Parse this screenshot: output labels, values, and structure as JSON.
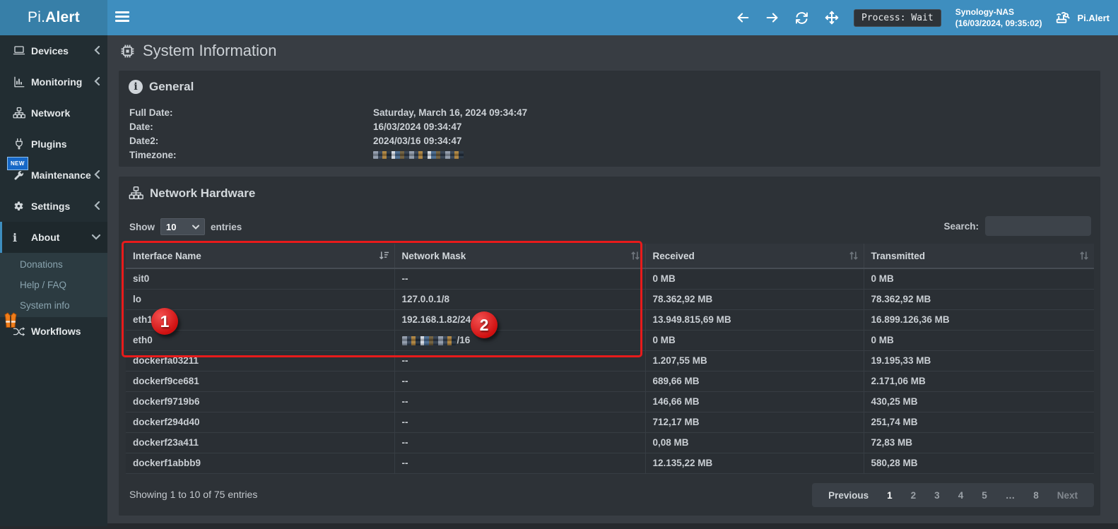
{
  "topbar": {
    "brand_prefix": "Pi.",
    "brand_suffix": "Alert",
    "process_badge": "Process: Wait",
    "host_name": "Synology-NAS",
    "host_time": "(16/03/2024, 09:35:02)",
    "app_name": "Pi.Alert"
  },
  "sidebar": {
    "items": [
      {
        "label": "Devices"
      },
      {
        "label": "Monitoring"
      },
      {
        "label": "Network"
      },
      {
        "label": "Plugins"
      },
      {
        "label": "Maintenance",
        "badge": "NEW"
      },
      {
        "label": "Settings"
      },
      {
        "label": "About"
      }
    ],
    "new_badge": "NEW",
    "about_submenu": [
      {
        "label": "Donations"
      },
      {
        "label": "Help / FAQ"
      },
      {
        "label": "System info"
      }
    ],
    "workflows_label": "Workflows"
  },
  "page": {
    "title": "System Information"
  },
  "general": {
    "title": "General",
    "fields": [
      {
        "label": "Full Date:",
        "value": "Saturday, March 16, 2024 09:34:47"
      },
      {
        "label": "Date:",
        "value": "16/03/2024 09:34:47"
      },
      {
        "label": "Date2:",
        "value": "2024/03/16 09:34:47"
      },
      {
        "label": "Timezone:",
        "value": "",
        "redacted": true
      }
    ]
  },
  "network_hardware": {
    "title": "Network Hardware",
    "show_label": "Show",
    "entries_label": "entries",
    "page_size": "10",
    "search_label": "Search:",
    "search_value": "",
    "table": {
      "columns": [
        "Interface Name",
        "Network Mask",
        "Received",
        "Transmitted"
      ],
      "rows": [
        {
          "interface": "sit0",
          "mask": "--",
          "received": "0 MB",
          "transmitted": "0 MB"
        },
        {
          "interface": "lo",
          "mask": "127.0.0.1/8",
          "received": "78.362,92 MB",
          "transmitted": "78.362,92 MB"
        },
        {
          "interface": "eth1",
          "mask": "192.168.1.82/24",
          "received": "13.949.815,69 MB",
          "transmitted": "16.899.126,36 MB"
        },
        {
          "interface": "eth0",
          "mask": "/16",
          "mask_redacted": true,
          "received": "0 MB",
          "transmitted": "0 MB"
        },
        {
          "interface": "dockerfa03211",
          "mask": "--",
          "received": "1.207,55 MB",
          "transmitted": "19.195,33 MB"
        },
        {
          "interface": "dockerf9ce681",
          "mask": "--",
          "received": "689,66 MB",
          "transmitted": "2.171,06 MB"
        },
        {
          "interface": "dockerf9719b6",
          "mask": "--",
          "received": "146,66 MB",
          "transmitted": "430,25 MB"
        },
        {
          "interface": "dockerf294d40",
          "mask": "--",
          "received": "712,17 MB",
          "transmitted": "251,74 MB"
        },
        {
          "interface": "dockerf23a411",
          "mask": "--",
          "received": "0,08 MB",
          "transmitted": "72,83 MB"
        },
        {
          "interface": "dockerf1abbb9",
          "mask": "--",
          "received": "12.135,22 MB",
          "transmitted": "580,28 MB"
        }
      ]
    },
    "footer": {
      "showing_text": "Showing 1 to 10 of 75 entries",
      "pagination": [
        "Previous",
        "1",
        "2",
        "3",
        "4",
        "5",
        "…",
        "8",
        "Next"
      ],
      "active_page": "1"
    }
  },
  "annotations": {
    "step1": "1",
    "step2": "2"
  },
  "icons": {
    "topbar": [
      "arrow-left-icon",
      "arrow-right-icon",
      "refresh-icon",
      "move-icon",
      "router-signal-icon"
    ],
    "sidebar": [
      "laptop-icon",
      "chart-icon",
      "sitemap-icon",
      "plug-icon",
      "wrench-icon",
      "gear-icon",
      "info-icon",
      "shuffle-icon",
      "safety-vest-icon"
    ],
    "page": [
      "microchip-icon",
      "circle-info-icon",
      "sitemap-icon",
      "sort-desc-icon",
      "sort-both-icon"
    ]
  },
  "colors": {
    "navbar": "#3e8ebf",
    "logo_bg": "#377fa8",
    "sidebar_bg": "#222d32",
    "content_bg": "#383d43",
    "panel_bg": "#2d3237",
    "annotation_red": "#e81b1b",
    "new_badge_blue": "#1668c7"
  }
}
